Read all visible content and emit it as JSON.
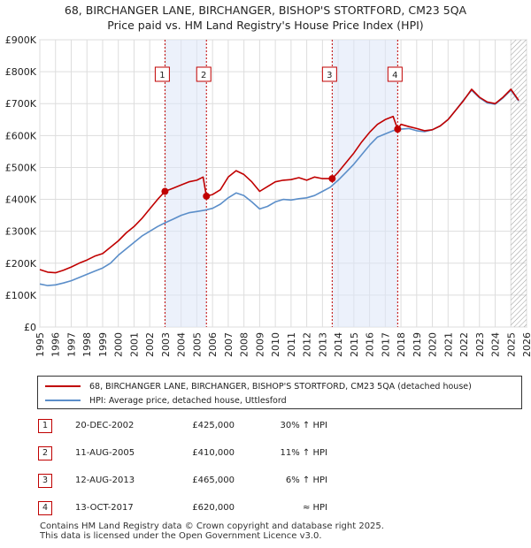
{
  "chart_data": {
    "type": "line",
    "title": "68, BIRCHANGER LANE, BIRCHANGER, BISHOP'S STORTFORD, CM23 5QA",
    "subtitle": "Price paid vs. HM Land Registry's House Price Index (HPI)",
    "xlim": [
      1995,
      2026
    ],
    "ylim": [
      0,
      900000
    ],
    "x_ticks": [
      "1995",
      "1996",
      "1997",
      "1998",
      "1999",
      "2000",
      "2001",
      "2002",
      "2003",
      "2004",
      "2005",
      "2006",
      "2007",
      "2008",
      "2009",
      "2010",
      "2011",
      "2012",
      "2013",
      "2014",
      "2015",
      "2016",
      "2017",
      "2018",
      "2019",
      "2020",
      "2021",
      "2022",
      "2023",
      "2024",
      "2025",
      "2026"
    ],
    "y_ticks": [
      {
        "value": 0,
        "label": "£0"
      },
      {
        "value": 100000,
        "label": "£100K"
      },
      {
        "value": 200000,
        "label": "£200K"
      },
      {
        "value": 300000,
        "label": "£300K"
      },
      {
        "value": 400000,
        "label": "£400K"
      },
      {
        "value": 500000,
        "label": "£500K"
      },
      {
        "value": 600000,
        "label": "£600K"
      },
      {
        "value": 700000,
        "label": "£700K"
      },
      {
        "value": 800000,
        "label": "£800K"
      },
      {
        "value": 900000,
        "label": "£900K"
      }
    ],
    "grid": true,
    "shaded_ranges": [
      [
        2002.97,
        2005.61
      ],
      [
        2013.62,
        2017.79
      ]
    ],
    "future_hatch_start": 2025.0,
    "series": [
      {
        "name": "68, BIRCHANGER LANE, BIRCHANGER, BISHOP'S STORTFORD, CM23 5QA (detached house)",
        "color": "#c00000",
        "points": [
          [
            1995.0,
            180000
          ],
          [
            1995.5,
            172000
          ],
          [
            1996.0,
            170000
          ],
          [
            1996.5,
            178000
          ],
          [
            1997.0,
            188000
          ],
          [
            1997.5,
            200000
          ],
          [
            1998.0,
            210000
          ],
          [
            1998.5,
            222000
          ],
          [
            1999.0,
            230000
          ],
          [
            1999.5,
            250000
          ],
          [
            2000.0,
            270000
          ],
          [
            2000.5,
            295000
          ],
          [
            2001.0,
            315000
          ],
          [
            2001.5,
            340000
          ],
          [
            2002.0,
            370000
          ],
          [
            2002.5,
            400000
          ],
          [
            2002.97,
            425000
          ],
          [
            2003.5,
            435000
          ],
          [
            2004.0,
            445000
          ],
          [
            2004.5,
            455000
          ],
          [
            2005.0,
            460000
          ],
          [
            2005.4,
            470000
          ],
          [
            2005.61,
            410000
          ],
          [
            2006.0,
            415000
          ],
          [
            2006.5,
            430000
          ],
          [
            2007.0,
            470000
          ],
          [
            2007.5,
            490000
          ],
          [
            2008.0,
            478000
          ],
          [
            2008.5,
            455000
          ],
          [
            2009.0,
            425000
          ],
          [
            2009.5,
            440000
          ],
          [
            2010.0,
            455000
          ],
          [
            2010.5,
            460000
          ],
          [
            2011.0,
            462000
          ],
          [
            2011.5,
            468000
          ],
          [
            2012.0,
            460000
          ],
          [
            2012.5,
            470000
          ],
          [
            2013.0,
            465000
          ],
          [
            2013.62,
            465000
          ],
          [
            2014.0,
            485000
          ],
          [
            2014.5,
            515000
          ],
          [
            2015.0,
            545000
          ],
          [
            2015.5,
            580000
          ],
          [
            2016.0,
            610000
          ],
          [
            2016.5,
            635000
          ],
          [
            2017.0,
            650000
          ],
          [
            2017.5,
            660000
          ],
          [
            2017.79,
            620000
          ],
          [
            2018.0,
            635000
          ],
          [
            2018.5,
            628000
          ],
          [
            2019.0,
            622000
          ],
          [
            2019.5,
            615000
          ],
          [
            2020.0,
            618000
          ],
          [
            2020.5,
            630000
          ],
          [
            2021.0,
            650000
          ],
          [
            2021.5,
            680000
          ],
          [
            2022.0,
            710000
          ],
          [
            2022.5,
            745000
          ],
          [
            2023.0,
            720000
          ],
          [
            2023.5,
            705000
          ],
          [
            2024.0,
            700000
          ],
          [
            2024.5,
            720000
          ],
          [
            2025.0,
            745000
          ],
          [
            2025.5,
            710000
          ]
        ]
      },
      {
        "name": "HPI: Average price, detached house, Uttlesford",
        "color": "#5b8ec9",
        "points": [
          [
            1995.0,
            135000
          ],
          [
            1995.5,
            130000
          ],
          [
            1996.0,
            132000
          ],
          [
            1996.5,
            138000
          ],
          [
            1997.0,
            145000
          ],
          [
            1997.5,
            155000
          ],
          [
            1998.0,
            165000
          ],
          [
            1998.5,
            175000
          ],
          [
            1999.0,
            185000
          ],
          [
            1999.5,
            200000
          ],
          [
            2000.0,
            225000
          ],
          [
            2000.5,
            245000
          ],
          [
            2001.0,
            265000
          ],
          [
            2001.5,
            285000
          ],
          [
            2002.0,
            300000
          ],
          [
            2002.5,
            315000
          ],
          [
            2003.0,
            327000
          ],
          [
            2003.5,
            338000
          ],
          [
            2004.0,
            350000
          ],
          [
            2004.5,
            358000
          ],
          [
            2005.0,
            362000
          ],
          [
            2005.5,
            366000
          ],
          [
            2006.0,
            372000
          ],
          [
            2006.5,
            385000
          ],
          [
            2007.0,
            405000
          ],
          [
            2007.5,
            420000
          ],
          [
            2008.0,
            412000
          ],
          [
            2008.5,
            392000
          ],
          [
            2009.0,
            370000
          ],
          [
            2009.5,
            378000
          ],
          [
            2010.0,
            392000
          ],
          [
            2010.5,
            400000
          ],
          [
            2011.0,
            398000
          ],
          [
            2011.5,
            402000
          ],
          [
            2012.0,
            405000
          ],
          [
            2012.5,
            412000
          ],
          [
            2013.0,
            425000
          ],
          [
            2013.5,
            438000
          ],
          [
            2014.0,
            460000
          ],
          [
            2014.5,
            485000
          ],
          [
            2015.0,
            510000
          ],
          [
            2015.5,
            540000
          ],
          [
            2016.0,
            570000
          ],
          [
            2016.5,
            595000
          ],
          [
            2017.0,
            605000
          ],
          [
            2017.5,
            615000
          ],
          [
            2018.0,
            620000
          ],
          [
            2018.5,
            622000
          ],
          [
            2019.0,
            615000
          ],
          [
            2019.5,
            612000
          ],
          [
            2020.0,
            618000
          ],
          [
            2020.5,
            630000
          ],
          [
            2021.0,
            650000
          ],
          [
            2021.5,
            680000
          ],
          [
            2022.0,
            712000
          ],
          [
            2022.5,
            742000
          ],
          [
            2023.0,
            718000
          ],
          [
            2023.5,
            702000
          ],
          [
            2024.0,
            698000
          ],
          [
            2024.5,
            718000
          ],
          [
            2025.0,
            742000
          ],
          [
            2025.5,
            708000
          ]
        ]
      }
    ],
    "annotations": [
      {
        "label": "1",
        "x": 2002.97,
        "y": 425000
      },
      {
        "label": "2",
        "x": 2005.61,
        "y": 410000
      },
      {
        "label": "3",
        "x": 2013.62,
        "y": 465000
      },
      {
        "label": "4",
        "x": 2017.79,
        "y": 620000
      }
    ]
  },
  "legend": {
    "items": [
      {
        "label": "68, BIRCHANGER LANE, BIRCHANGER, BISHOP'S STORTFORD, CM23 5QA (detached house)",
        "color": "#c00000"
      },
      {
        "label": "HPI: Average price, detached house, Uttlesford",
        "color": "#5b8ec9"
      }
    ]
  },
  "sales": [
    {
      "num": "1",
      "date": "20-DEC-2002",
      "price": "£425,000",
      "hpi": "30% ↑ HPI"
    },
    {
      "num": "2",
      "date": "11-AUG-2005",
      "price": "£410,000",
      "hpi": "11% ↑ HPI"
    },
    {
      "num": "3",
      "date": "12-AUG-2013",
      "price": "£465,000",
      "hpi": "6% ↑ HPI"
    },
    {
      "num": "4",
      "date": "13-OCT-2017",
      "price": "£620,000",
      "hpi": "≈ HPI"
    }
  ],
  "footer": {
    "line1": "Contains HM Land Registry data © Crown copyright and database right 2025.",
    "line2": "This data is licensed under the Open Government Licence v3.0."
  }
}
